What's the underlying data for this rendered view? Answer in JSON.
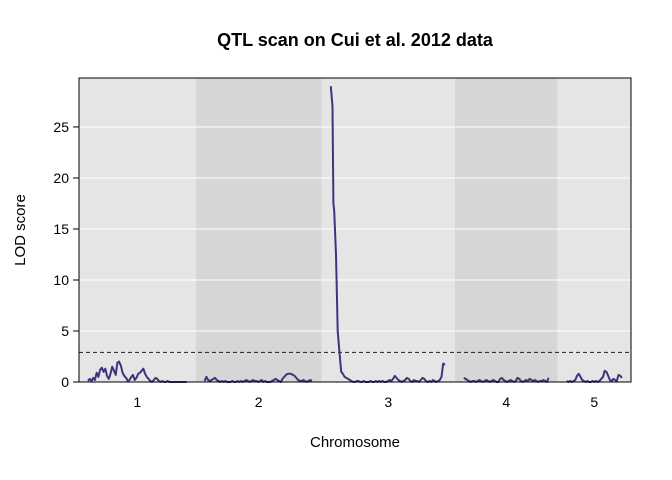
{
  "chart_data": {
    "type": "line",
    "title": "QTL scan on Cui et al. 2012 data",
    "xlabel": "Chromosome",
    "ylabel": "LOD score",
    "ylim": [
      0,
      29.8
    ],
    "yticks": [
      0,
      5,
      10,
      15,
      20,
      25
    ],
    "threshold": 2.9,
    "grid": true,
    "chromosomes": [
      {
        "label": "1",
        "length": 114
      },
      {
        "label": "2",
        "length": 125
      },
      {
        "label": "3",
        "length": 133
      },
      {
        "label": "4",
        "length": 98
      },
      {
        "label": "5",
        "length": 64
      }
    ],
    "series": [
      {
        "color": "#3b3580",
        "chromosomes": [
          {
            "x": [
              0,
              2,
              4,
              6,
              8,
              10,
              12,
              14,
              16,
              18,
              20,
              22,
              24,
              26,
              28,
              30,
              32,
              34,
              36,
              38,
              40,
              42,
              44,
              46,
              48,
              50,
              52,
              54,
              56,
              58,
              60,
              62,
              64,
              66,
              68,
              70,
              72,
              74,
              76,
              78,
              80,
              82,
              84,
              86,
              88,
              90,
              92,
              94,
              96,
              98,
              100,
              102,
              104,
              106,
              108,
              110,
              112,
              114
            ],
            "y": [
              0.1,
              0.3,
              0.1,
              0.4,
              0.2,
              0.9,
              0.5,
              1.2,
              1.4,
              1.0,
              1.3,
              0.6,
              0.3,
              0.8,
              1.5,
              1.1,
              0.7,
              1.9,
              2.0,
              1.6,
              0.9,
              0.6,
              0.4,
              0.1,
              0.2,
              0.5,
              0.7,
              0.2,
              0.4,
              0.8,
              0.9,
              1.1,
              1.3,
              0.8,
              0.5,
              0.3,
              0.1,
              0.0,
              0.2,
              0.4,
              0.3,
              0.1,
              0.0,
              0.1,
              0.0,
              0.0,
              0.1,
              0.0,
              0.0,
              0.0,
              0.0,
              0.0,
              0.0,
              0.0,
              0.0,
              0.0,
              0.0,
              0.0
            ]
          },
          {
            "x": [
              0,
              2,
              4,
              6,
              8,
              10,
              12,
              14,
              16,
              18,
              20,
              22,
              24,
              26,
              28,
              30,
              32,
              34,
              36,
              38,
              40,
              42,
              44,
              46,
              48,
              50,
              52,
              54,
              56,
              58,
              60,
              62,
              64,
              66,
              68,
              70,
              72,
              74,
              76,
              78,
              80,
              82,
              84,
              86,
              88,
              90,
              92,
              94,
              96,
              98,
              100,
              102,
              104,
              106,
              108,
              110,
              112,
              114,
              116,
              118,
              120,
              122,
              124
            ],
            "y": [
              0.1,
              0.5,
              0.2,
              0.1,
              0.2,
              0.3,
              0.4,
              0.2,
              0.1,
              0.0,
              0.1,
              0.0,
              0.1,
              0.0,
              0.0,
              0.0,
              0.1,
              0.0,
              0.0,
              0.1,
              0.0,
              0.1,
              0.0,
              0.1,
              0.2,
              0.1,
              0.0,
              0.1,
              0.2,
              0.1,
              0.1,
              0.0,
              0.1,
              0.2,
              0.0,
              0.1,
              0.0,
              0.0,
              0.0,
              0.1,
              0.2,
              0.3,
              0.2,
              0.1,
              0.0,
              0.3,
              0.5,
              0.7,
              0.8,
              0.8,
              0.8,
              0.7,
              0.6,
              0.4,
              0.2,
              0.1,
              0.1,
              0.2,
              0.1,
              0.0,
              0.1,
              0.2,
              0.1
            ]
          },
          {
            "x": [
              0,
              2,
              3,
              4,
              6,
              8,
              10,
              12,
              14,
              16,
              18,
              20,
              22,
              24,
              26,
              28,
              30,
              32,
              34,
              36,
              38,
              40,
              42,
              44,
              46,
              48,
              50,
              52,
              54,
              56,
              58,
              60,
              62,
              64,
              66,
              68,
              70,
              72,
              74,
              76,
              78,
              80,
              82,
              84,
              86,
              88,
              90,
              92,
              94,
              96,
              98,
              100,
              102,
              104,
              106,
              108,
              110,
              112,
              114,
              116,
              118,
              120,
              122,
              124,
              126,
              128,
              130,
              132
            ],
            "y": [
              29.0,
              27.0,
              17.5,
              16.8,
              12.5,
              5.0,
              3.0,
              1.0,
              0.8,
              0.5,
              0.4,
              0.3,
              0.2,
              0.1,
              0.0,
              0.0,
              0.1,
              0.1,
              0.0,
              0.0,
              0.1,
              0.0,
              0.0,
              0.0,
              0.1,
              0.0,
              0.0,
              0.1,
              0.0,
              0.1,
              0.0,
              0.1,
              0.0,
              0.0,
              0.1,
              0.2,
              0.1,
              0.3,
              0.6,
              0.4,
              0.2,
              0.1,
              0.0,
              0.1,
              0.2,
              0.4,
              0.3,
              0.1,
              0.0,
              0.2,
              0.1,
              0.1,
              0.0,
              0.2,
              0.4,
              0.3,
              0.1,
              0.0,
              0.1,
              0.0,
              0.2,
              0.1,
              0.0,
              0.1,
              0.2,
              0.5,
              1.8,
              1.7
            ]
          },
          {
            "x": [
              0,
              2,
              4,
              6,
              8,
              10,
              12,
              14,
              16,
              18,
              20,
              22,
              24,
              26,
              28,
              30,
              32,
              34,
              36,
              38,
              40,
              42,
              44,
              46,
              48,
              50,
              52,
              54,
              56,
              58,
              60,
              62,
              64,
              66,
              68,
              70,
              72,
              74,
              76,
              78,
              80,
              82,
              84,
              86,
              88,
              90,
              92,
              94,
              96,
              98
            ],
            "y": [
              0.4,
              0.3,
              0.2,
              0.1,
              0.0,
              0.1,
              0.1,
              0.0,
              0.1,
              0.2,
              0.1,
              0.0,
              0.1,
              0.2,
              0.1,
              0.0,
              0.1,
              0.2,
              0.1,
              0.0,
              0.0,
              0.3,
              0.4,
              0.2,
              0.1,
              0.0,
              0.1,
              0.2,
              0.1,
              0.0,
              0.1,
              0.4,
              0.3,
              0.1,
              0.0,
              0.1,
              0.2,
              0.1,
              0.3,
              0.2,
              0.1,
              0.2,
              0.1,
              0.0,
              0.1,
              0.1,
              0.2,
              0.1,
              0.0,
              0.4
            ]
          },
          {
            "x": [
              0,
              2,
              4,
              6,
              8,
              10,
              12,
              14,
              16,
              18,
              20,
              22,
              24,
              26,
              28,
              30,
              32,
              34,
              36,
              38,
              40,
              42,
              44,
              46,
              48,
              50,
              52,
              54,
              56,
              58,
              60,
              62,
              64
            ],
            "y": [
              0.1,
              0.0,
              0.1,
              0.0,
              0.1,
              0.2,
              0.6,
              0.8,
              0.5,
              0.2,
              0.1,
              0.0,
              0.1,
              0.0,
              0.0,
              0.1,
              0.0,
              0.1,
              0.0,
              0.1,
              0.3,
              0.5,
              1.1,
              1.0,
              0.6,
              0.2,
              0.1,
              0.3,
              0.2,
              0.1,
              0.7,
              0.6,
              0.4
            ]
          }
        ]
      }
    ]
  }
}
